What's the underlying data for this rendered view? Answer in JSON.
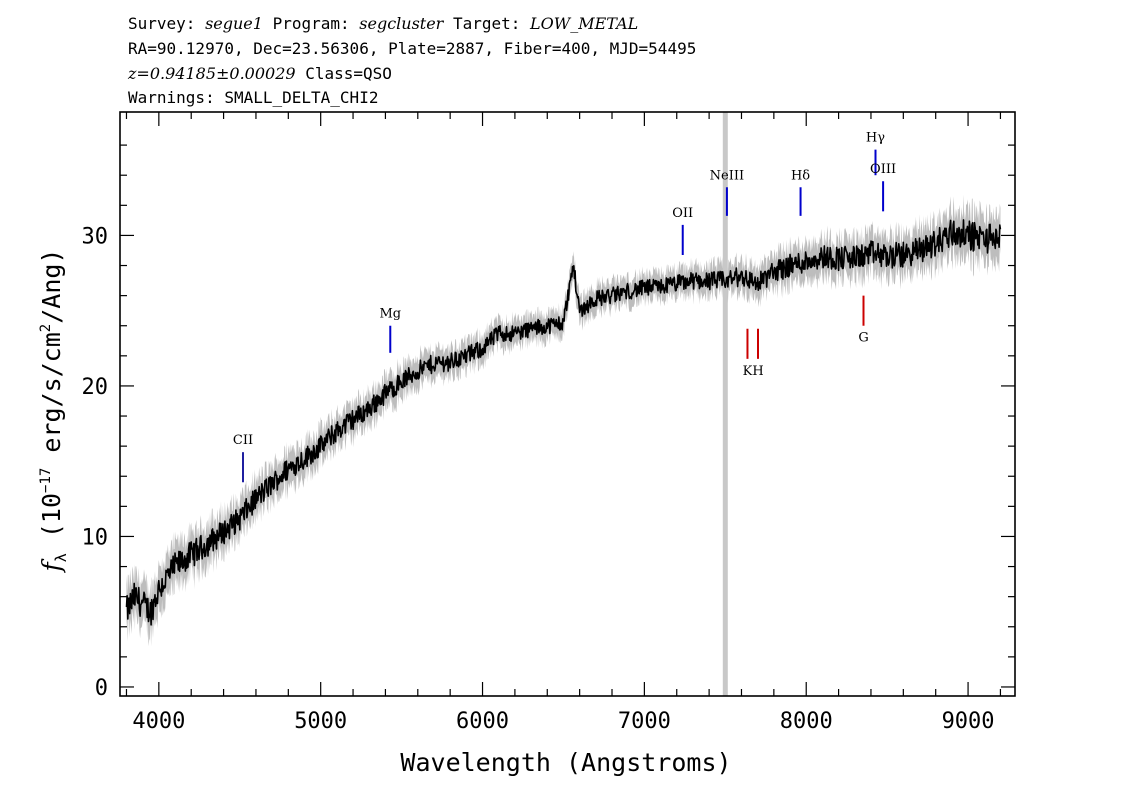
{
  "header": {
    "line1": {
      "survey_label": "Survey: ",
      "survey": "segue1",
      "program_label": " Program: ",
      "program": "segcluster",
      "target_label": " Target: ",
      "target": "LOW_METAL"
    },
    "line2": "RA=90.12970, Dec=23.56306, Plate=2887, Fiber=400, MJD=54495",
    "line3": {
      "z": "z=0.94185±0.00029",
      "class_text": " Class=QSO"
    },
    "line4": "Warnings: SMALL_DELTA_CHI2"
  },
  "chart_data": {
    "type": "line",
    "xlabel": "Wavelength (Angstroms)",
    "ylabel_parts": {
      "f": "f",
      "sub": "λ",
      "pre": " (10",
      "exp_neg": "−17",
      "mid": " erg/s/cm",
      "exp2": "2",
      "post": "/Ang)"
    },
    "xlim": [
      3760,
      9290
    ],
    "ylim": [
      -0.6,
      38.2
    ],
    "x_ticks": [
      4000,
      5000,
      6000,
      7000,
      8000,
      9000
    ],
    "x_tick_labels": [
      "4000",
      "5000",
      "6000",
      "7000",
      "8000",
      "9000"
    ],
    "y_ticks": [
      0,
      10,
      20,
      30
    ],
    "y_tick_labels": [
      "0",
      "10",
      "20",
      "30"
    ],
    "series": [
      {
        "kind": "flux",
        "color": "#000000",
        "x": [
          3800,
          3850,
          3900,
          3950,
          4000,
          4100,
          4200,
          4300,
          4400,
          4500,
          4600,
          4700,
          4800,
          4900,
          5000,
          5100,
          5200,
          5300,
          5400,
          5500,
          5600,
          5700,
          5800,
          5900,
          6000,
          6100,
          6200,
          6300,
          6400,
          6500,
          6560,
          6600,
          6700,
          6800,
          6900,
          7000,
          7100,
          7200,
          7300,
          7400,
          7500,
          7600,
          7700,
          7800,
          7900,
          8000,
          8100,
          8200,
          8300,
          8400,
          8500,
          8600,
          8700,
          8800,
          8900,
          9000,
          9100,
          9200
        ],
        "y": [
          5.0,
          6.0,
          5.5,
          5.0,
          6.5,
          8.0,
          8.8,
          9.5,
          10.3,
          11.2,
          12.5,
          13.5,
          14.5,
          15.2,
          16.0,
          17.0,
          17.8,
          18.5,
          19.5,
          20.3,
          21.0,
          21.5,
          21.6,
          22.0,
          22.5,
          23.5,
          23.5,
          23.8,
          24.0,
          24.2,
          28.0,
          25.0,
          25.8,
          26.0,
          26.3,
          26.5,
          26.6,
          26.8,
          27.0,
          27.0,
          27.0,
          27.3,
          26.8,
          27.6,
          28.0,
          28.3,
          28.6,
          28.5,
          28.5,
          28.8,
          28.6,
          28.7,
          29.0,
          29.5,
          30.2,
          30.0,
          29.8,
          29.9
        ]
      },
      {
        "kind": "error-band",
        "color": "#bdbdbd",
        "x": [
          3800,
          4200,
          4600,
          5000,
          5400,
          5800,
          6200,
          6600,
          7000,
          7400,
          7800,
          8200,
          8600,
          9000,
          9200
        ],
        "half_width": [
          1.8,
          1.6,
          1.4,
          1.3,
          1.2,
          1.1,
          1.0,
          1.0,
          1.0,
          1.1,
          1.3,
          1.5,
          1.6,
          1.8,
          1.8
        ]
      }
    ],
    "masked_region": {
      "x": 7500,
      "color": "#c8c8c8"
    },
    "emission_lines": [
      {
        "label": "CII",
        "x": 4520,
        "color": "#1f1fa0",
        "y_bottom": 13.6,
        "y_top": 15.6
      },
      {
        "label": "Mg",
        "x": 5430,
        "color": "#0000cc",
        "y_bottom": 22.2,
        "y_top": 24.0
      },
      {
        "label": "OII",
        "x": 7237,
        "color": "#0000cc",
        "y_bottom": 28.7,
        "y_top": 30.7
      },
      {
        "label": "NeIII",
        "x": 7510,
        "color": "#0000cc",
        "y_bottom": 31.3,
        "y_top": 33.2
      },
      {
        "label": "Hδ",
        "x": 7965,
        "color": "#0000cc",
        "y_bottom": 31.3,
        "y_top": 33.2
      },
      {
        "label": "Hγ",
        "x": 8428,
        "color": "#0000cc",
        "y_bottom": 34.0,
        "y_top": 35.7
      },
      {
        "label": "OIII",
        "x": 8475,
        "color": "#0000cc",
        "y_bottom": 31.6,
        "y_top": 33.6
      }
    ],
    "absorption_lines": [
      {
        "label": "K",
        "x": 7637,
        "color": "#cc0000",
        "y_bottom": 21.8,
        "y_top": 23.8
      },
      {
        "label": "H",
        "x": 7702,
        "color": "#cc0000",
        "y_bottom": 21.8,
        "y_top": 23.8
      },
      {
        "label": "G",
        "x": 8354,
        "color": "#cc0000",
        "y_bottom": 24.0,
        "y_top": 26.0
      }
    ]
  }
}
